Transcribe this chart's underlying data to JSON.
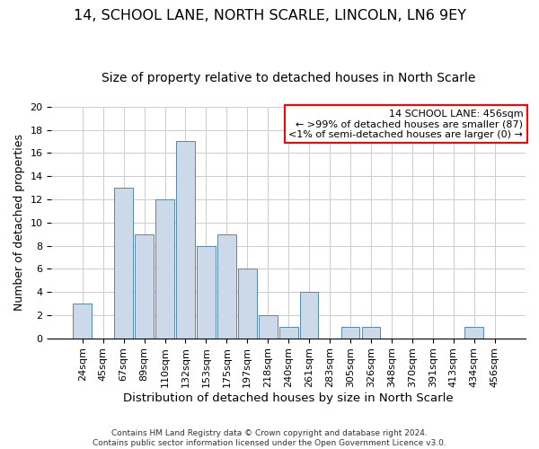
{
  "title": "14, SCHOOL LANE, NORTH SCARLE, LINCOLN, LN6 9EY",
  "subtitle": "Size of property relative to detached houses in North Scarle",
  "xlabel": "Distribution of detached houses by size in North Scarle",
  "ylabel": "Number of detached properties",
  "categories": [
    "24sqm",
    "45sqm",
    "67sqm",
    "89sqm",
    "110sqm",
    "132sqm",
    "153sqm",
    "175sqm",
    "197sqm",
    "218sqm",
    "240sqm",
    "261sqm",
    "283sqm",
    "305sqm",
    "326sqm",
    "348sqm",
    "370sqm",
    "391sqm",
    "413sqm",
    "434sqm",
    "456sqm"
  ],
  "values": [
    3,
    0,
    13,
    9,
    12,
    17,
    8,
    9,
    6,
    2,
    1,
    4,
    0,
    1,
    1,
    0,
    0,
    0,
    0,
    1,
    0
  ],
  "bar_color": "#ccd9e8",
  "bar_edgecolor": "#5588aa",
  "annotation_box_text": "14 SCHOOL LANE: 456sqm\n← >99% of detached houses are smaller (87)\n<1% of semi-detached houses are larger (0) →",
  "annotation_box_color": "white",
  "annotation_box_edgecolor": "red",
  "ylim": [
    0,
    20
  ],
  "yticks": [
    0,
    2,
    4,
    6,
    8,
    10,
    12,
    14,
    16,
    18,
    20
  ],
  "title_fontsize": 11.5,
  "subtitle_fontsize": 10,
  "xlabel_fontsize": 9.5,
  "ylabel_fontsize": 9,
  "tick_fontsize": 8,
  "annot_fontsize": 8,
  "footer_line1": "Contains HM Land Registry data © Crown copyright and database right 2024.",
  "footer_line2": "Contains public sector information licensed under the Open Government Licence v3.0.",
  "background_color": "white",
  "grid_color": "#cccccc"
}
